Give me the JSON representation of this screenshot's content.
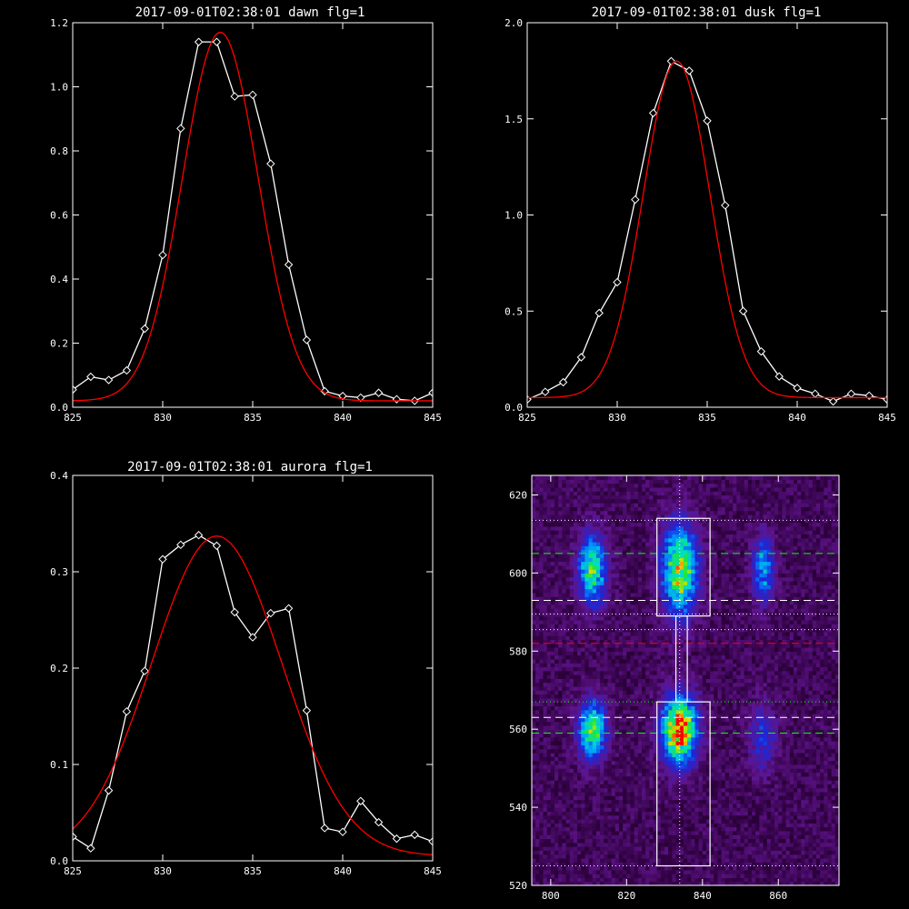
{
  "chart_data": [
    {
      "type": "line",
      "title": "2017-09-01T02:38:01 dawn flg=1",
      "xlim": [
        825,
        845
      ],
      "ylim": [
        0,
        1.2
      ],
      "xticks": [
        "825",
        "830",
        "835",
        "840",
        "845"
      ],
      "yticks": [
        "0.0",
        "0.2",
        "0.4",
        "0.6",
        "0.8",
        "1.0",
        "1.2"
      ],
      "series": [
        {
          "kind": "data",
          "color": "#ffffff",
          "marker": "diamond",
          "x": [
            825,
            826,
            827,
            828,
            829,
            830,
            831,
            832,
            833,
            834,
            835,
            836,
            837,
            838,
            839,
            840,
            841,
            842,
            843,
            844,
            845
          ],
          "y": [
            0.055,
            0.095,
            0.085,
            0.115,
            0.245,
            0.475,
            0.87,
            1.14,
            1.14,
            0.97,
            0.975,
            0.76,
            0.445,
            0.21,
            0.05,
            0.035,
            0.03,
            0.045,
            0.025,
            0.02,
            0.045
          ]
        },
        {
          "kind": "fit",
          "color": "#ff0000",
          "gauss": {
            "a": 1.15,
            "mu": 833.2,
            "sigma": 2.1,
            "c": 0.02
          }
        }
      ]
    },
    {
      "type": "line",
      "title": "2017-09-01T02:38:01 dusk flg=1",
      "xlim": [
        825,
        845
      ],
      "ylim": [
        0,
        2.0
      ],
      "xticks": [
        "825",
        "830",
        "835",
        "840",
        "845"
      ],
      "yticks": [
        "0.0",
        "0.5",
        "1.0",
        "1.5",
        "2.0"
      ],
      "series": [
        {
          "kind": "data",
          "color": "#ffffff",
          "marker": "diamond",
          "x": [
            825,
            826,
            827,
            828,
            829,
            830,
            831,
            832,
            833,
            834,
            835,
            836,
            837,
            838,
            839,
            840,
            841,
            842,
            843,
            844,
            845
          ],
          "y": [
            0.04,
            0.08,
            0.13,
            0.26,
            0.49,
            0.65,
            1.08,
            1.53,
            1.8,
            1.75,
            1.49,
            1.05,
            0.5,
            0.29,
            0.16,
            0.1,
            0.07,
            0.03,
            0.07,
            0.06,
            0.04
          ]
        },
        {
          "kind": "fit",
          "color": "#ff0000",
          "gauss": {
            "a": 1.75,
            "mu": 833.3,
            "sigma": 1.85,
            "c": 0.05
          }
        }
      ]
    },
    {
      "type": "line",
      "title": "2017-09-01T02:38:01 aurora flg=1",
      "xlim": [
        825,
        845
      ],
      "ylim": [
        0,
        0.4
      ],
      "xticks": [
        "825",
        "830",
        "835",
        "840",
        "845"
      ],
      "yticks": [
        "0.0",
        "0.1",
        "0.2",
        "0.3",
        "0.4"
      ],
      "series": [
        {
          "kind": "data",
          "color": "#ffffff",
          "marker": "diamond",
          "x": [
            825,
            826,
            827,
            828,
            829,
            830,
            831,
            832,
            833,
            834,
            835,
            836,
            837,
            838,
            839,
            840,
            841,
            842,
            843,
            844,
            845
          ],
          "y": [
            0.025,
            0.013,
            0.073,
            0.155,
            0.197,
            0.313,
            0.328,
            0.338,
            0.327,
            0.258,
            0.232,
            0.257,
            0.262,
            0.156,
            0.034,
            0.03,
            0.062,
            0.04,
            0.023,
            0.027,
            0.02
          ]
        },
        {
          "kind": "fit",
          "color": "#ff0000",
          "gauss": {
            "a": 0.332,
            "mu": 833.0,
            "sigma": 3.6,
            "c": 0.005
          }
        }
      ]
    },
    {
      "type": "heatmap",
      "title": "",
      "xlim": [
        795,
        876
      ],
      "ylim": [
        520,
        625
      ],
      "xticks": [
        "800",
        "820",
        "840",
        "860"
      ],
      "yticks": [
        "520",
        "540",
        "560",
        "580",
        "600",
        "620"
      ],
      "blobs": [
        {
          "x": 811,
          "y": 601,
          "sx": 2.5,
          "sy": 6,
          "amp": 0.62
        },
        {
          "x": 811,
          "y": 560,
          "sx": 2.5,
          "sy": 5,
          "amp": 0.66
        },
        {
          "x": 834,
          "y": 601,
          "sx": 3.2,
          "sy": 8,
          "amp": 0.72
        },
        {
          "x": 834,
          "y": 560,
          "sx": 3.2,
          "sy": 6,
          "amp": 0.9
        },
        {
          "x": 856,
          "y": 601,
          "sx": 2,
          "sy": 6,
          "amp": 0.4
        },
        {
          "x": 856,
          "y": 558,
          "sx": 2.5,
          "sy": 6,
          "amp": 0.25
        }
      ],
      "vertical_line": {
        "x": 834,
        "color": "#ffffff",
        "style": "dotted"
      },
      "hlines": [
        {
          "y": 613.5,
          "color": "#ffffff",
          "style": "dotted"
        },
        {
          "y": 605,
          "color": "#00ff00",
          "style": "dashed"
        },
        {
          "y": 593,
          "color": "#ffffff",
          "style": "dashed"
        },
        {
          "y": 589.5,
          "color": "#ffffff",
          "style": "dotted"
        },
        {
          "y": 585.5,
          "color": "#ffffff",
          "style": "dotted"
        },
        {
          "y": 582,
          "color": "#ff0000",
          "style": "dashed"
        },
        {
          "y": 567,
          "color": "#00ff00",
          "style": "dotted"
        },
        {
          "y": 563,
          "color": "#ffffff",
          "style": "dashed"
        },
        {
          "y": 559,
          "color": "#00ff00",
          "style": "dashed"
        },
        {
          "y": 525,
          "color": "#ffffff",
          "style": "dotted"
        }
      ],
      "boxes": [
        {
          "x0": 828,
          "x1": 842,
          "y0": 589,
          "y1": 614,
          "color": "#ffffff"
        },
        {
          "x0": 828,
          "x1": 842,
          "y0": 525,
          "y1": 567,
          "color": "#ffffff"
        },
        {
          "x0": 833,
          "x1": 836,
          "y0": 567,
          "y1": 589,
          "color": "#ffffff"
        }
      ]
    }
  ]
}
